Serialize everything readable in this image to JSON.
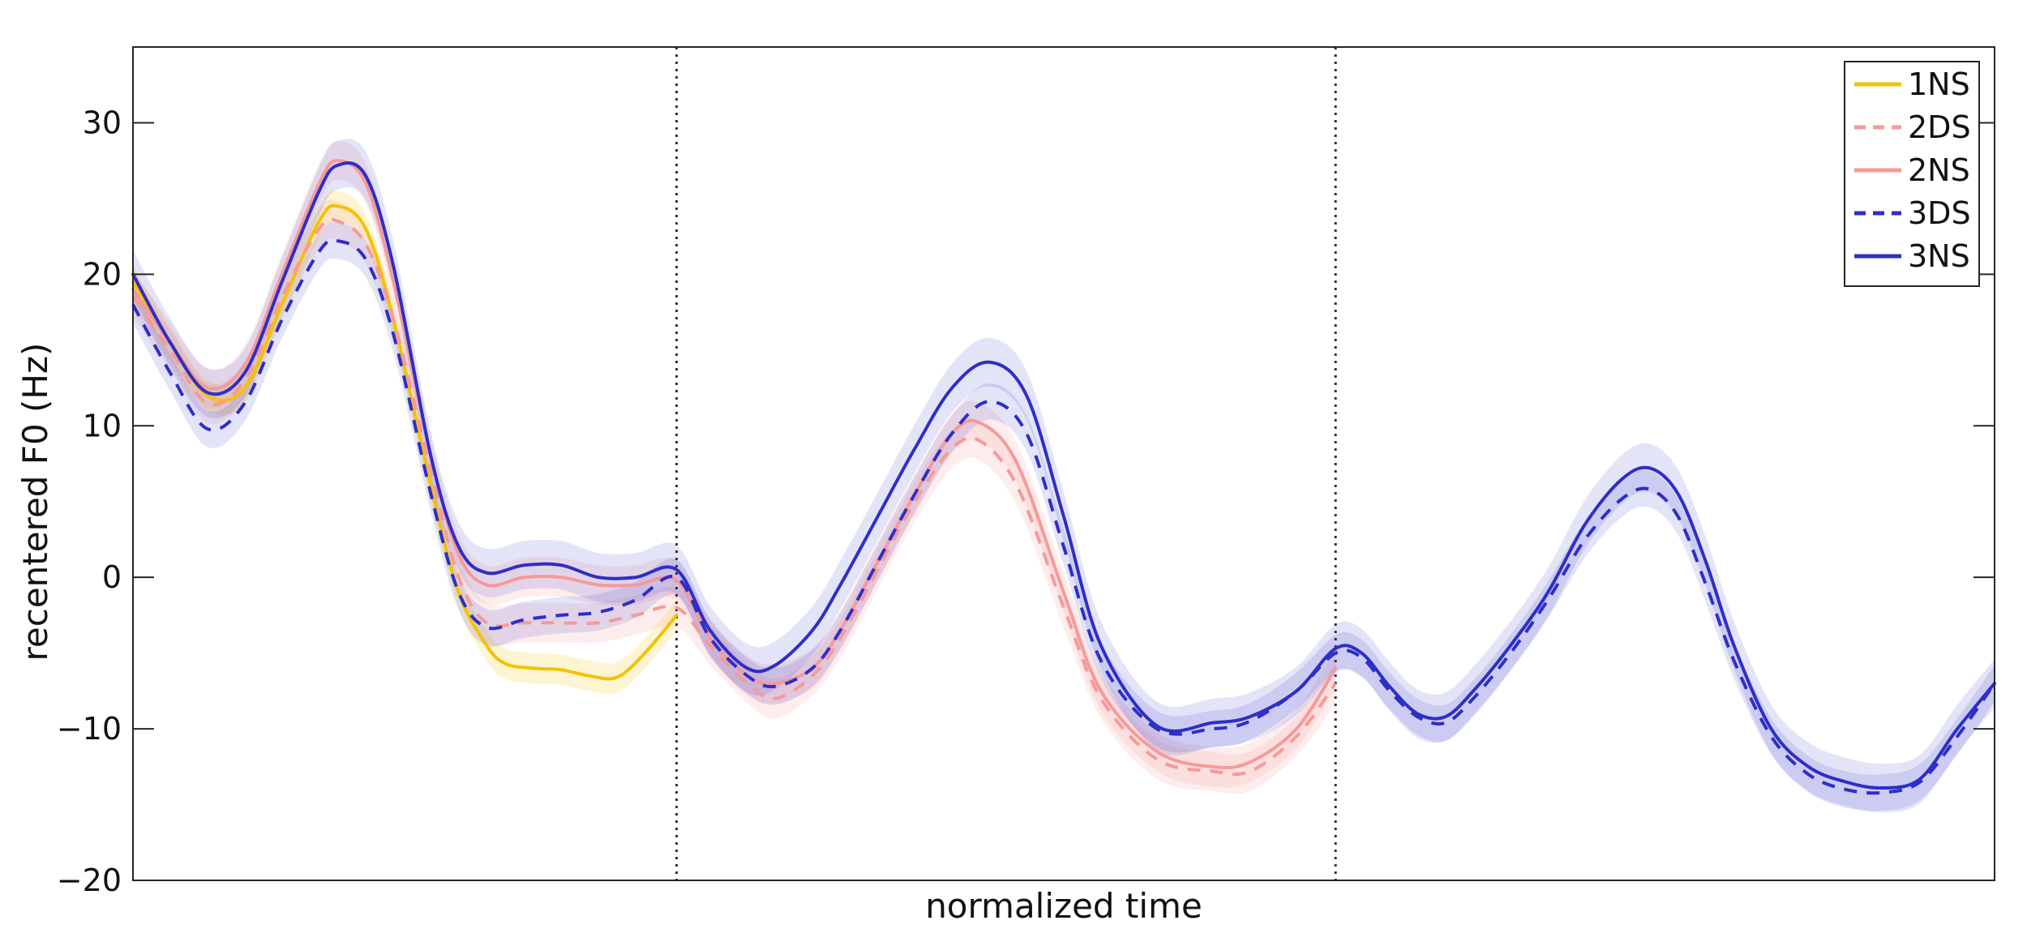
{
  "chart_data": {
    "type": "line",
    "title": "",
    "xlabel": "normalized time",
    "ylabel": "recentered F0 (Hz)",
    "x_range": [
      0,
      1
    ],
    "ylim": [
      -20,
      35
    ],
    "y_ticks": [
      -20,
      -10,
      0,
      10,
      20,
      30
    ],
    "grid": false,
    "legend_position": "top-right",
    "vertical_markers": [
      0.292,
      0.646
    ],
    "series": [
      {
        "name": "1NS",
        "color": "#F2C300",
        "dash": "solid",
        "band": 1.0,
        "x": [
          0.0,
          0.02,
          0.04,
          0.06,
          0.08,
          0.1,
          0.11,
          0.125,
          0.14,
          0.16,
          0.175,
          0.19,
          0.2,
          0.215,
          0.23,
          0.245,
          0.26,
          0.275,
          0.292
        ],
        "y": [
          19.5,
          15.5,
          12.0,
          12.5,
          18.0,
          23.5,
          24.5,
          23.0,
          17.0,
          6.0,
          -1.0,
          -4.5,
          -5.7,
          -6.0,
          -6.1,
          -6.5,
          -6.6,
          -5.0,
          -2.5
        ]
      },
      {
        "name": "2DS",
        "color": "#F59A9A",
        "dash": "dashed",
        "band": 1.3,
        "x": [
          0.0,
          0.02,
          0.04,
          0.06,
          0.08,
          0.1,
          0.11,
          0.125,
          0.14,
          0.16,
          0.175,
          0.19,
          0.21,
          0.23,
          0.25,
          0.27,
          0.292,
          0.31,
          0.33,
          0.345,
          0.365,
          0.38,
          0.4,
          0.42,
          0.44,
          0.455,
          0.475,
          0.5,
          0.52,
          0.55,
          0.58,
          0.6,
          0.625,
          0.646
        ],
        "y": [
          18.5,
          15.0,
          11.5,
          13.0,
          18.5,
          23.0,
          23.5,
          22.0,
          17.0,
          7.0,
          0.0,
          -3.0,
          -3.0,
          -3.0,
          -3.0,
          -2.5,
          -2.0,
          -4.5,
          -7.0,
          -8.0,
          -6.5,
          -4.0,
          0.5,
          5.0,
          8.5,
          9.0,
          6.0,
          -2.0,
          -8.0,
          -12.0,
          -12.8,
          -12.8,
          -10.5,
          -7.0
        ]
      },
      {
        "name": "2NS",
        "color": "#F59A9A",
        "dash": "solid",
        "band": 1.3,
        "x": [
          0.0,
          0.02,
          0.04,
          0.06,
          0.08,
          0.1,
          0.11,
          0.125,
          0.14,
          0.16,
          0.175,
          0.19,
          0.21,
          0.23,
          0.25,
          0.27,
          0.292,
          0.31,
          0.33,
          0.345,
          0.365,
          0.38,
          0.4,
          0.42,
          0.44,
          0.455,
          0.475,
          0.5,
          0.52,
          0.55,
          0.58,
          0.6,
          0.625,
          0.646
        ],
        "y": [
          19.0,
          15.5,
          12.5,
          14.0,
          20.0,
          26.0,
          27.5,
          26.0,
          19.5,
          8.0,
          1.5,
          -0.5,
          0.0,
          0.0,
          -0.5,
          -0.5,
          -0.2,
          -4.0,
          -6.5,
          -7.0,
          -6.0,
          -3.5,
          1.0,
          5.5,
          9.5,
          10.2,
          7.5,
          -1.0,
          -7.5,
          -11.5,
          -12.5,
          -12.2,
          -10.0,
          -6.0
        ]
      },
      {
        "name": "3DS",
        "color": "#2E2EC8",
        "dash": "dashed",
        "band": 1.2,
        "x": [
          0.0,
          0.02,
          0.04,
          0.06,
          0.08,
          0.1,
          0.11,
          0.125,
          0.14,
          0.16,
          0.175,
          0.19,
          0.21,
          0.23,
          0.25,
          0.27,
          0.292,
          0.31,
          0.33,
          0.345,
          0.365,
          0.38,
          0.4,
          0.42,
          0.44,
          0.46,
          0.48,
          0.5,
          0.52,
          0.55,
          0.58,
          0.6,
          0.625,
          0.646,
          0.66,
          0.675,
          0.69,
          0.705,
          0.72,
          0.74,
          0.76,
          0.78,
          0.8,
          0.815,
          0.83,
          0.845,
          0.86,
          0.88,
          0.9,
          0.92,
          0.94,
          0.96,
          0.98,
          1.0
        ],
        "y": [
          18.0,
          13.5,
          9.8,
          11.5,
          17.0,
          21.5,
          22.2,
          21.0,
          16.0,
          5.5,
          -1.0,
          -3.3,
          -2.8,
          -2.5,
          -2.3,
          -1.5,
          0.0,
          -4.0,
          -6.5,
          -7.2,
          -6.0,
          -3.5,
          1.0,
          5.5,
          9.5,
          11.6,
          9.5,
          2.0,
          -5.5,
          -10.0,
          -10.0,
          -9.5,
          -7.5,
          -5.0,
          -5.3,
          -7.5,
          -9.2,
          -9.6,
          -8.0,
          -5.0,
          -1.5,
          2.5,
          5.2,
          5.8,
          4.0,
          -0.5,
          -5.5,
          -10.5,
          -13.0,
          -14.0,
          -14.2,
          -13.5,
          -10.5,
          -7.0
        ]
      },
      {
        "name": "3NS",
        "color": "#2E2EC8",
        "dash": "solid",
        "band": 1.6,
        "x": [
          0.0,
          0.02,
          0.04,
          0.06,
          0.08,
          0.1,
          0.11,
          0.125,
          0.14,
          0.16,
          0.175,
          0.19,
          0.21,
          0.23,
          0.25,
          0.27,
          0.292,
          0.31,
          0.33,
          0.345,
          0.365,
          0.38,
          0.4,
          0.42,
          0.44,
          0.46,
          0.48,
          0.5,
          0.52,
          0.55,
          0.58,
          0.6,
          0.625,
          0.646,
          0.66,
          0.675,
          0.69,
          0.705,
          0.72,
          0.74,
          0.76,
          0.78,
          0.8,
          0.815,
          0.83,
          0.845,
          0.86,
          0.88,
          0.9,
          0.92,
          0.94,
          0.96,
          0.98,
          1.0
        ],
        "y": [
          20.0,
          15.5,
          12.2,
          13.5,
          19.5,
          25.5,
          27.2,
          26.5,
          20.5,
          8.0,
          2.0,
          0.3,
          0.8,
          0.8,
          0.0,
          0.0,
          0.5,
          -3.5,
          -6.0,
          -5.8,
          -3.5,
          -0.5,
          4.0,
          8.5,
          12.5,
          14.2,
          12.0,
          4.0,
          -4.5,
          -9.8,
          -9.6,
          -9.2,
          -7.5,
          -4.7,
          -5.0,
          -7.2,
          -9.0,
          -9.2,
          -7.5,
          -4.5,
          -1.0,
          3.5,
          6.5,
          7.2,
          5.5,
          1.0,
          -4.5,
          -10.0,
          -12.5,
          -13.5,
          -13.9,
          -13.3,
          -10.0,
          -7.0
        ]
      }
    ]
  }
}
